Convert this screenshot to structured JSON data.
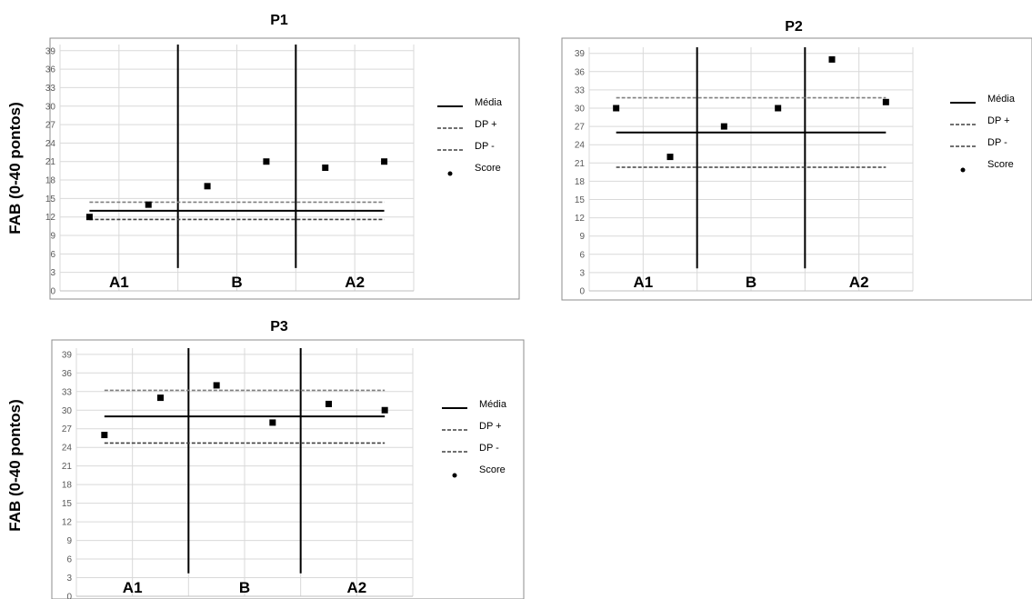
{
  "ylabel": "FAB (0-40 pontos)",
  "legend_labels": [
    "Média",
    "DP +",
    "DP -",
    "Score"
  ],
  "phase_labels": [
    "A1",
    "B",
    "A2"
  ],
  "y_ticks": [
    "0",
    "3",
    "6",
    "9",
    "12",
    "15",
    "18",
    "21",
    "24",
    "27",
    "30",
    "33",
    "36",
    "39"
  ],
  "colors": {
    "frame": "#8c8c8c",
    "grid": "#d9d9d9",
    "ink": "#000000",
    "dp_plus": "#7f7f7f"
  },
  "chart_data": [
    {
      "type": "scatter",
      "title": "P1",
      "ylim": [
        0,
        40
      ],
      "x": [
        1,
        2,
        3,
        4,
        5,
        6
      ],
      "scores": [
        12,
        14,
        17,
        21,
        20,
        21
      ],
      "media": 13,
      "dp_plus": 14.4,
      "dp_minus": 11.6,
      "phase_boundaries": [
        2.5,
        4.5
      ],
      "phases": [
        "A1",
        "B",
        "A2"
      ],
      "y_ticks": [
        0,
        3,
        6,
        9,
        12,
        15,
        18,
        21,
        24,
        27,
        30,
        33,
        36,
        39
      ],
      "legend": [
        "Média",
        "DP +",
        "DP -",
        "Score"
      ],
      "grid": true,
      "legend_position": "right"
    },
    {
      "type": "scatter",
      "title": "P2",
      "ylim": [
        0,
        40
      ],
      "x": [
        1,
        2,
        3,
        4,
        5,
        6
      ],
      "scores": [
        30,
        22,
        27,
        30,
        38,
        31
      ],
      "media": 26,
      "dp_plus": 31.7,
      "dp_minus": 20.3,
      "phase_boundaries": [
        2.5,
        4.5
      ],
      "phases": [
        "A1",
        "B",
        "A2"
      ],
      "y_ticks": [
        0,
        3,
        6,
        9,
        12,
        15,
        18,
        21,
        24,
        27,
        30,
        33,
        36,
        39
      ],
      "legend": [
        "Média",
        "DP +",
        "DP -",
        "Score"
      ],
      "grid": true,
      "legend_position": "right"
    },
    {
      "type": "scatter",
      "title": "P3",
      "ylim": [
        0,
        40
      ],
      "x": [
        1,
        2,
        3,
        4,
        5,
        6
      ],
      "scores": [
        26,
        32,
        34,
        28,
        31,
        30
      ],
      "media": 29,
      "dp_plus": 33.2,
      "dp_minus": 24.7,
      "phase_boundaries": [
        2.5,
        4.5
      ],
      "phases": [
        "A1",
        "B",
        "A2"
      ],
      "y_ticks": [
        0,
        3,
        6,
        9,
        12,
        15,
        18,
        21,
        24,
        27,
        30,
        33,
        36,
        39
      ],
      "legend": [
        "Média",
        "DP +",
        "DP -",
        "Score"
      ],
      "grid": true,
      "legend_position": "right"
    }
  ]
}
